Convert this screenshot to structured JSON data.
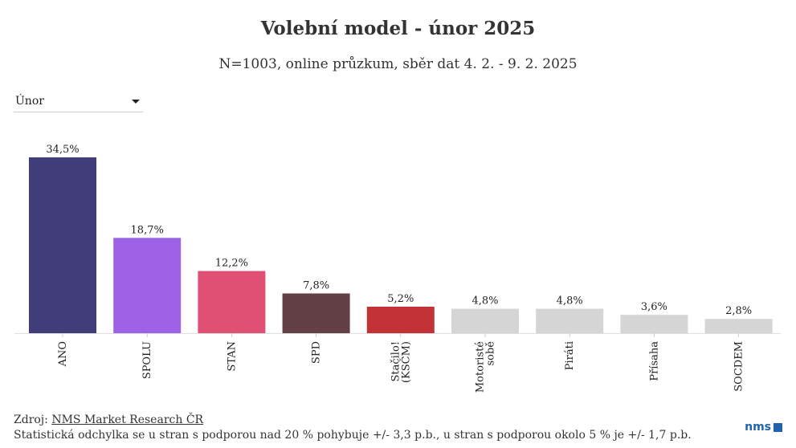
{
  "header": {
    "title": "Volební model - únor 2025",
    "subtitle": "N=1003, online průzkum, sběr dat 4. 2. - 9. 2. 2025"
  },
  "filter": {
    "selected": "Únor"
  },
  "chart_data": {
    "type": "bar",
    "categories": [
      "ANO",
      "SPOLU",
      "STAN",
      "SPD",
      "Stačilo! (KSČM)",
      "Motoristé sobě",
      "Piráti",
      "Přísaha",
      "SOCDEM"
    ],
    "category_lines": [
      [
        "ANO"
      ],
      [
        "SPOLU"
      ],
      [
        "STAN"
      ],
      [
        "SPD"
      ],
      [
        "Stačilo!",
        "(KSČM)"
      ],
      [
        "Motoristé",
        "sobě"
      ],
      [
        "Piráti"
      ],
      [
        "Přísaha"
      ],
      [
        "SOCDEM"
      ]
    ],
    "values": [
      34.5,
      18.7,
      12.2,
      7.8,
      5.2,
      4.8,
      4.8,
      3.6,
      2.8
    ],
    "value_labels": [
      "34,5%",
      "18,7%",
      "12,2%",
      "7,8%",
      "5,2%",
      "4,8%",
      "4,8%",
      "3,6%",
      "2,8%"
    ],
    "colors": [
      "#413d7a",
      "#9e62e6",
      "#e04f74",
      "#634046",
      "#c23236",
      "#d5d5d5",
      "#d5d5d5",
      "#d5d5d5",
      "#d5d5d5"
    ],
    "ylim": [
      0,
      34.5
    ],
    "grid": false,
    "xlabel": "",
    "ylabel": ""
  },
  "footer": {
    "source_prefix": "Zdroj: ",
    "source_link": "NMS Market Research ČR",
    "note": "Statistická odchylka se u stran s podporou nad 20 % pohybuje +/- 3,3 p.b., u stran s podporou okolo 5 % je +/- 1,7 p.b.",
    "logo_text": "nms",
    "logo_color": "#1f63b0"
  }
}
